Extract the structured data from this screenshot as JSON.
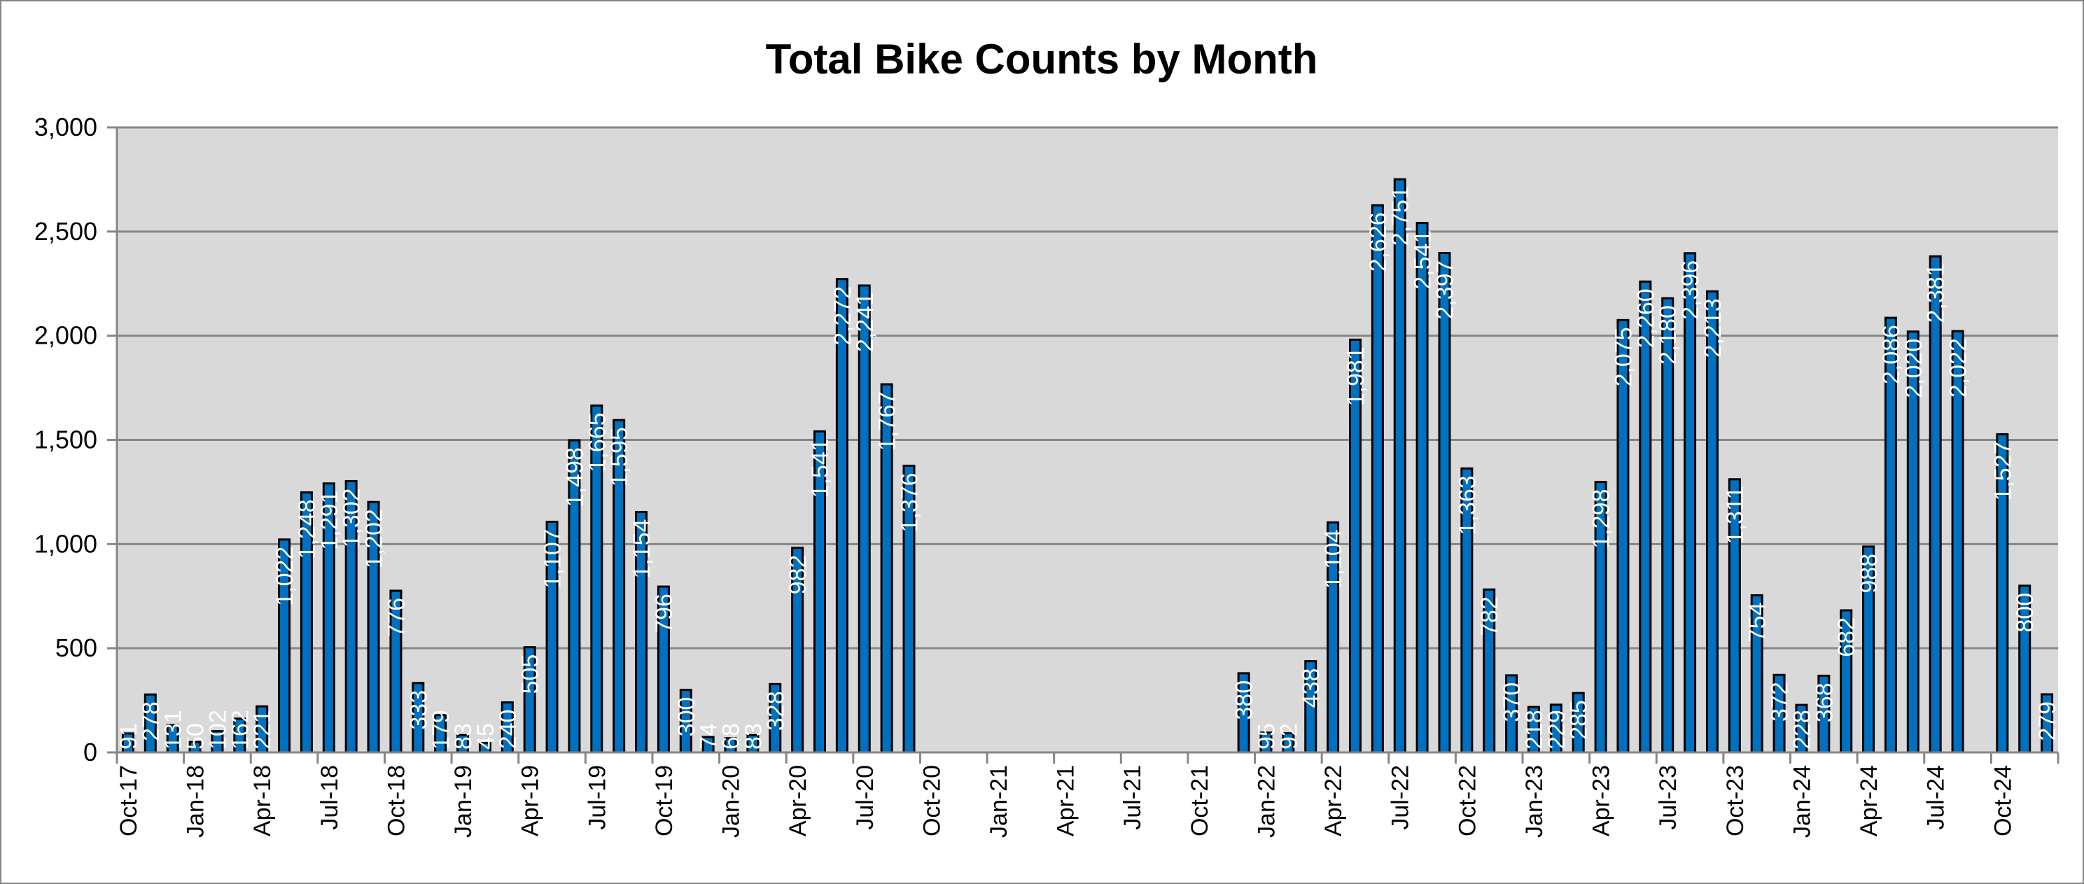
{
  "chart_data": {
    "type": "bar",
    "title": "Total Bike Counts by Month",
    "xlabel": "",
    "ylabel": "",
    "ylim": [
      0,
      3000
    ],
    "y_ticks": [
      "0",
      "500",
      "1,000",
      "1,500",
      "2,000",
      "2,500",
      "3,000"
    ],
    "grid": true,
    "legend": "none",
    "colors": {
      "bar": "#0070C0",
      "bar_outline": "#000000",
      "plot_background": "#D9D9D9",
      "gridline": "#868686",
      "data_label": "#FFFFFF"
    },
    "categories": [
      "Oct-17",
      "Nov-17",
      "Dec-17",
      "Jan-18",
      "Feb-18",
      "Mar-18",
      "Apr-18",
      "May-18",
      "Jun-18",
      "Jul-18",
      "Aug-18",
      "Sep-18",
      "Oct-18",
      "Nov-18",
      "Dec-18",
      "Jan-19",
      "Feb-19",
      "Mar-19",
      "Apr-19",
      "May-19",
      "Jun-19",
      "Jul-19",
      "Aug-19",
      "Sep-19",
      "Oct-19",
      "Nov-19",
      "Dec-19",
      "Jan-20",
      "Feb-20",
      "Mar-20",
      "Apr-20",
      "May-20",
      "Jun-20",
      "Jul-20",
      "Aug-20",
      "Sep-20",
      "Oct-20",
      "Nov-20",
      "Dec-20",
      "Jan-21",
      "Feb-21",
      "Mar-21",
      "Apr-21",
      "May-21",
      "Jun-21",
      "Jul-21",
      "Aug-21",
      "Sep-21",
      "Oct-21",
      "Nov-21",
      "Dec-21",
      "Jan-22",
      "Feb-22",
      "Mar-22",
      "Apr-22",
      "May-22",
      "Jun-22",
      "Jul-22",
      "Aug-22",
      "Sep-22",
      "Oct-22",
      "Nov-22",
      "Dec-22",
      "Jan-23",
      "Feb-23",
      "Mar-23",
      "Apr-23",
      "May-23",
      "Jun-23",
      "Jul-23",
      "Aug-23",
      "Sep-23",
      "Oct-23",
      "Nov-23",
      "Dec-23",
      "Jan-24",
      "Feb-24",
      "Mar-24",
      "Apr-24",
      "May-24",
      "Jun-24",
      "Jul-24",
      "Aug-24",
      "Sep-24",
      "Oct-24",
      "Nov-24",
      "Dec-24"
    ],
    "values": [
      91,
      278,
      131,
      50,
      102,
      162,
      221,
      1022,
      1248,
      1291,
      1302,
      1202,
      776,
      333,
      179,
      83,
      45,
      240,
      505,
      1107,
      1498,
      1665,
      1595,
      1154,
      796,
      300,
      74,
      68,
      83,
      328,
      982,
      1541,
      2272,
      2241,
      1767,
      1376,
      null,
      null,
      null,
      null,
      null,
      null,
      null,
      null,
      null,
      null,
      null,
      null,
      null,
      null,
      380,
      95,
      92,
      438,
      1104,
      1981,
      2626,
      2751,
      2541,
      2397,
      1363,
      782,
      370,
      218,
      229,
      285,
      1298,
      2075,
      2260,
      2180,
      2396,
      2213,
      1311,
      754,
      372,
      228,
      368,
      682,
      988,
      2086,
      2020,
      2381,
      2022,
      null,
      1527,
      800,
      279
    ],
    "x_tick_labels": [
      "Oct-17",
      "Jan-18",
      "Apr-18",
      "Jul-18",
      "Oct-18",
      "Jan-19",
      "Apr-19",
      "Jul-19",
      "Oct-19",
      "Jan-20",
      "Apr-20",
      "Jul-20",
      "Oct-20",
      "Jan-21",
      "Apr-21",
      "Jul-21",
      "Oct-21",
      "Jan-22",
      "Apr-22",
      "Jul-22",
      "Oct-22",
      "Jan-23",
      "Apr-23",
      "Jul-23",
      "Oct-23",
      "Jan-24",
      "Apr-24",
      "Jul-24",
      "Oct-24"
    ]
  }
}
